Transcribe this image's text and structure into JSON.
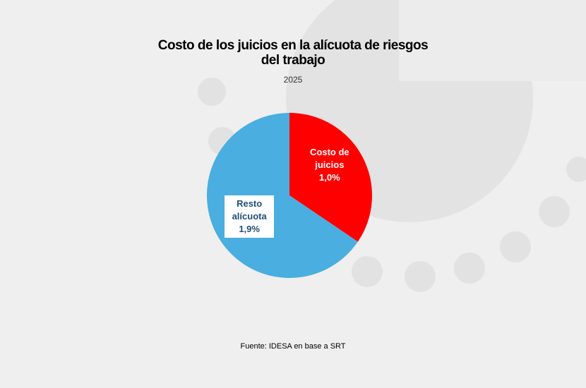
{
  "chart_data": {
    "type": "pie",
    "title": "Costo de los juicios en la alícuota de riesgos del trabajo",
    "subtitle": "2025",
    "categories": [
      "Costo de juicios",
      "Resto alícuota"
    ],
    "values": [
      1.0,
      1.9
    ],
    "value_labels": [
      "1,0%",
      "1,9%"
    ],
    "colors": [
      "#ff0000",
      "#4aaee0"
    ],
    "source": "Fuente: IDESA en base a SRT"
  }
}
